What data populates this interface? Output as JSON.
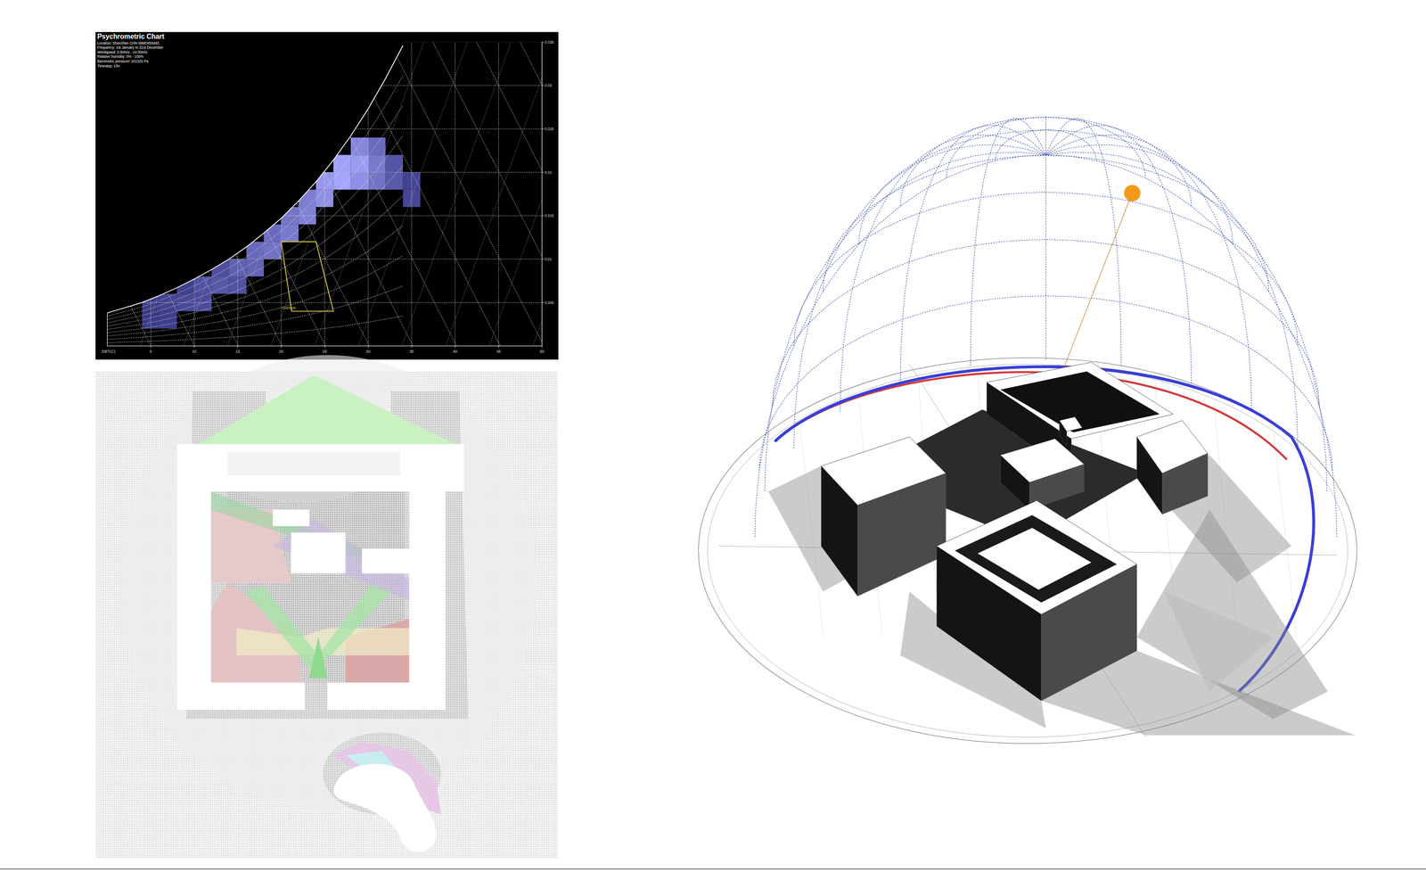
{
  "chart_data": {
    "type": "psychrometric",
    "title": "Psychrometric Chart",
    "subtitle": [
      "Location: Shenzhen CHN WMO#59493",
      "Frequency: 1st January to 31st December",
      "Windspeed: 0.00m/s - 24.00m/s",
      "Relative humidity: 0% - 100%",
      "Barometric pressure: 101325 Pa",
      "Timestep: 1/hr"
    ],
    "xlabel": "DBT(C)",
    "xlim": [
      0,
      50
    ],
    "xticks": [
      5,
      10,
      15,
      20,
      25,
      30,
      35,
      40,
      45,
      50
    ],
    "ylim": [
      0,
      0.035
    ],
    "yticks": [
      0.005,
      0.01,
      0.015,
      0.02,
      0.025,
      0.03,
      0.035
    ],
    "grid": true,
    "saturation": {
      "x": [
        0,
        2,
        4,
        6,
        8,
        10,
        12,
        14,
        16,
        18,
        20,
        22,
        24,
        26,
        28,
        30,
        32,
        34
      ],
      "values": [
        0.0038,
        0.0044,
        0.005,
        0.0058,
        0.0067,
        0.0077,
        0.0088,
        0.01,
        0.0114,
        0.013,
        0.0147,
        0.0167,
        0.0189,
        0.0214,
        0.0242,
        0.0273,
        0.0308,
        0.0346
      ]
    },
    "rh_lines": [
      10,
      20,
      30,
      40,
      50,
      60,
      70,
      80,
      90
    ],
    "hourly_density": {
      "cell_width": 2,
      "cell_height": 0.002,
      "x": [
        4,
        4,
        6,
        6,
        8,
        8,
        10,
        10,
        12,
        12,
        14,
        14,
        16,
        16,
        18,
        18,
        20,
        20,
        22,
        22,
        24,
        24,
        26,
        26,
        28,
        28,
        28,
        30,
        30,
        30,
        32,
        32,
        34,
        34
      ],
      "y": [
        0.002,
        0.004,
        0.002,
        0.004,
        0.004,
        0.006,
        0.004,
        0.006,
        0.006,
        0.008,
        0.006,
        0.008,
        0.008,
        0.01,
        0.01,
        0.012,
        0.012,
        0.014,
        0.014,
        0.016,
        0.016,
        0.018,
        0.018,
        0.02,
        0.018,
        0.02,
        0.022,
        0.018,
        0.02,
        0.022,
        0.018,
        0.02,
        0.016,
        0.018
      ],
      "counts": [
        5,
        8,
        10,
        15,
        25,
        12,
        30,
        40,
        55,
        35,
        40,
        80,
        90,
        110,
        150,
        120,
        180,
        160,
        220,
        200,
        300,
        350,
        450,
        420,
        300,
        380,
        250,
        150,
        180,
        120,
        60,
        50,
        20,
        15
      ]
    },
    "comfort": {
      "label": "Comfort",
      "x": [
        20,
        24,
        26,
        21.2
      ],
      "values": [
        0.012,
        0.012,
        0.004,
        0.004
      ]
    }
  }
}
